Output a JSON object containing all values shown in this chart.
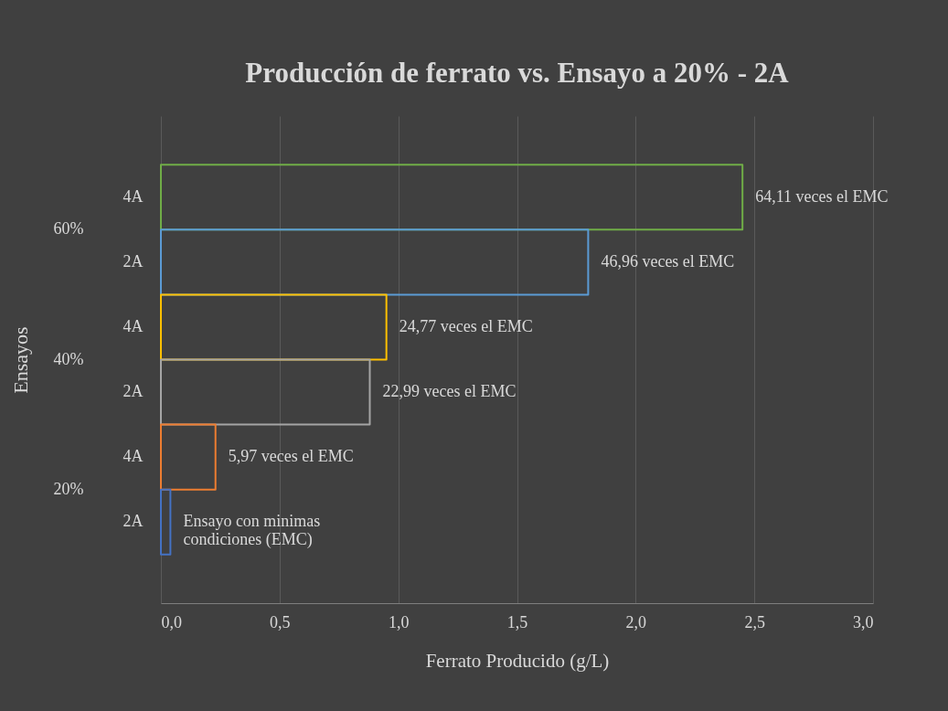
{
  "chart_data": {
    "type": "bar",
    "orientation": "horizontal",
    "title": "Producción de ferrato vs. Ensayo a 20% - 2A",
    "xlabel": "Ferrato Producido (g/L)",
    "ylabel": "Ensayos",
    "categories": [
      "4A",
      "2A",
      "4A",
      "2A",
      "4A",
      "2A"
    ],
    "values": [
      2.45,
      1.8,
      0.95,
      0.88,
      0.23,
      0.04
    ],
    "colors": [
      "#70ad47",
      "#5b9bd5",
      "#ffc000",
      "#a5a5a5",
      "#ed7d31",
      "#4472c4"
    ],
    "annotations": [
      "60%",
      "40%",
      "20%",
      {
        "text": "64,11 veces el EMC",
        "x": 2.45
      },
      {
        "text": "46,96 veces el EMC",
        "x": 1.8
      },
      {
        "text": "24,77  veces el EMC",
        "x": 0.95
      },
      {
        "text": "22,99 veces el EMC",
        "x": 0.88
      },
      {
        "text": "5,97 veces  el EMC",
        "x": 0.23
      },
      {
        "text": "Ensayo con minimas\ncondiciones (EMC)",
        "x": 0.04
      }
    ],
    "xlim": [
      0,
      3
    ],
    "xticks": [
      {
        "value": 0,
        "label": "0,0"
      },
      {
        "value": 0.5,
        "label": "0,5"
      },
      {
        "value": 1,
        "label": "1,0"
      },
      {
        "value": 1.5,
        "label": "1,5"
      },
      {
        "value": 2,
        "label": "2,0"
      },
      {
        "value": 2.5,
        "label": "2,5"
      },
      {
        "value": 3,
        "label": "3,0"
      }
    ],
    "grid": "x"
  }
}
